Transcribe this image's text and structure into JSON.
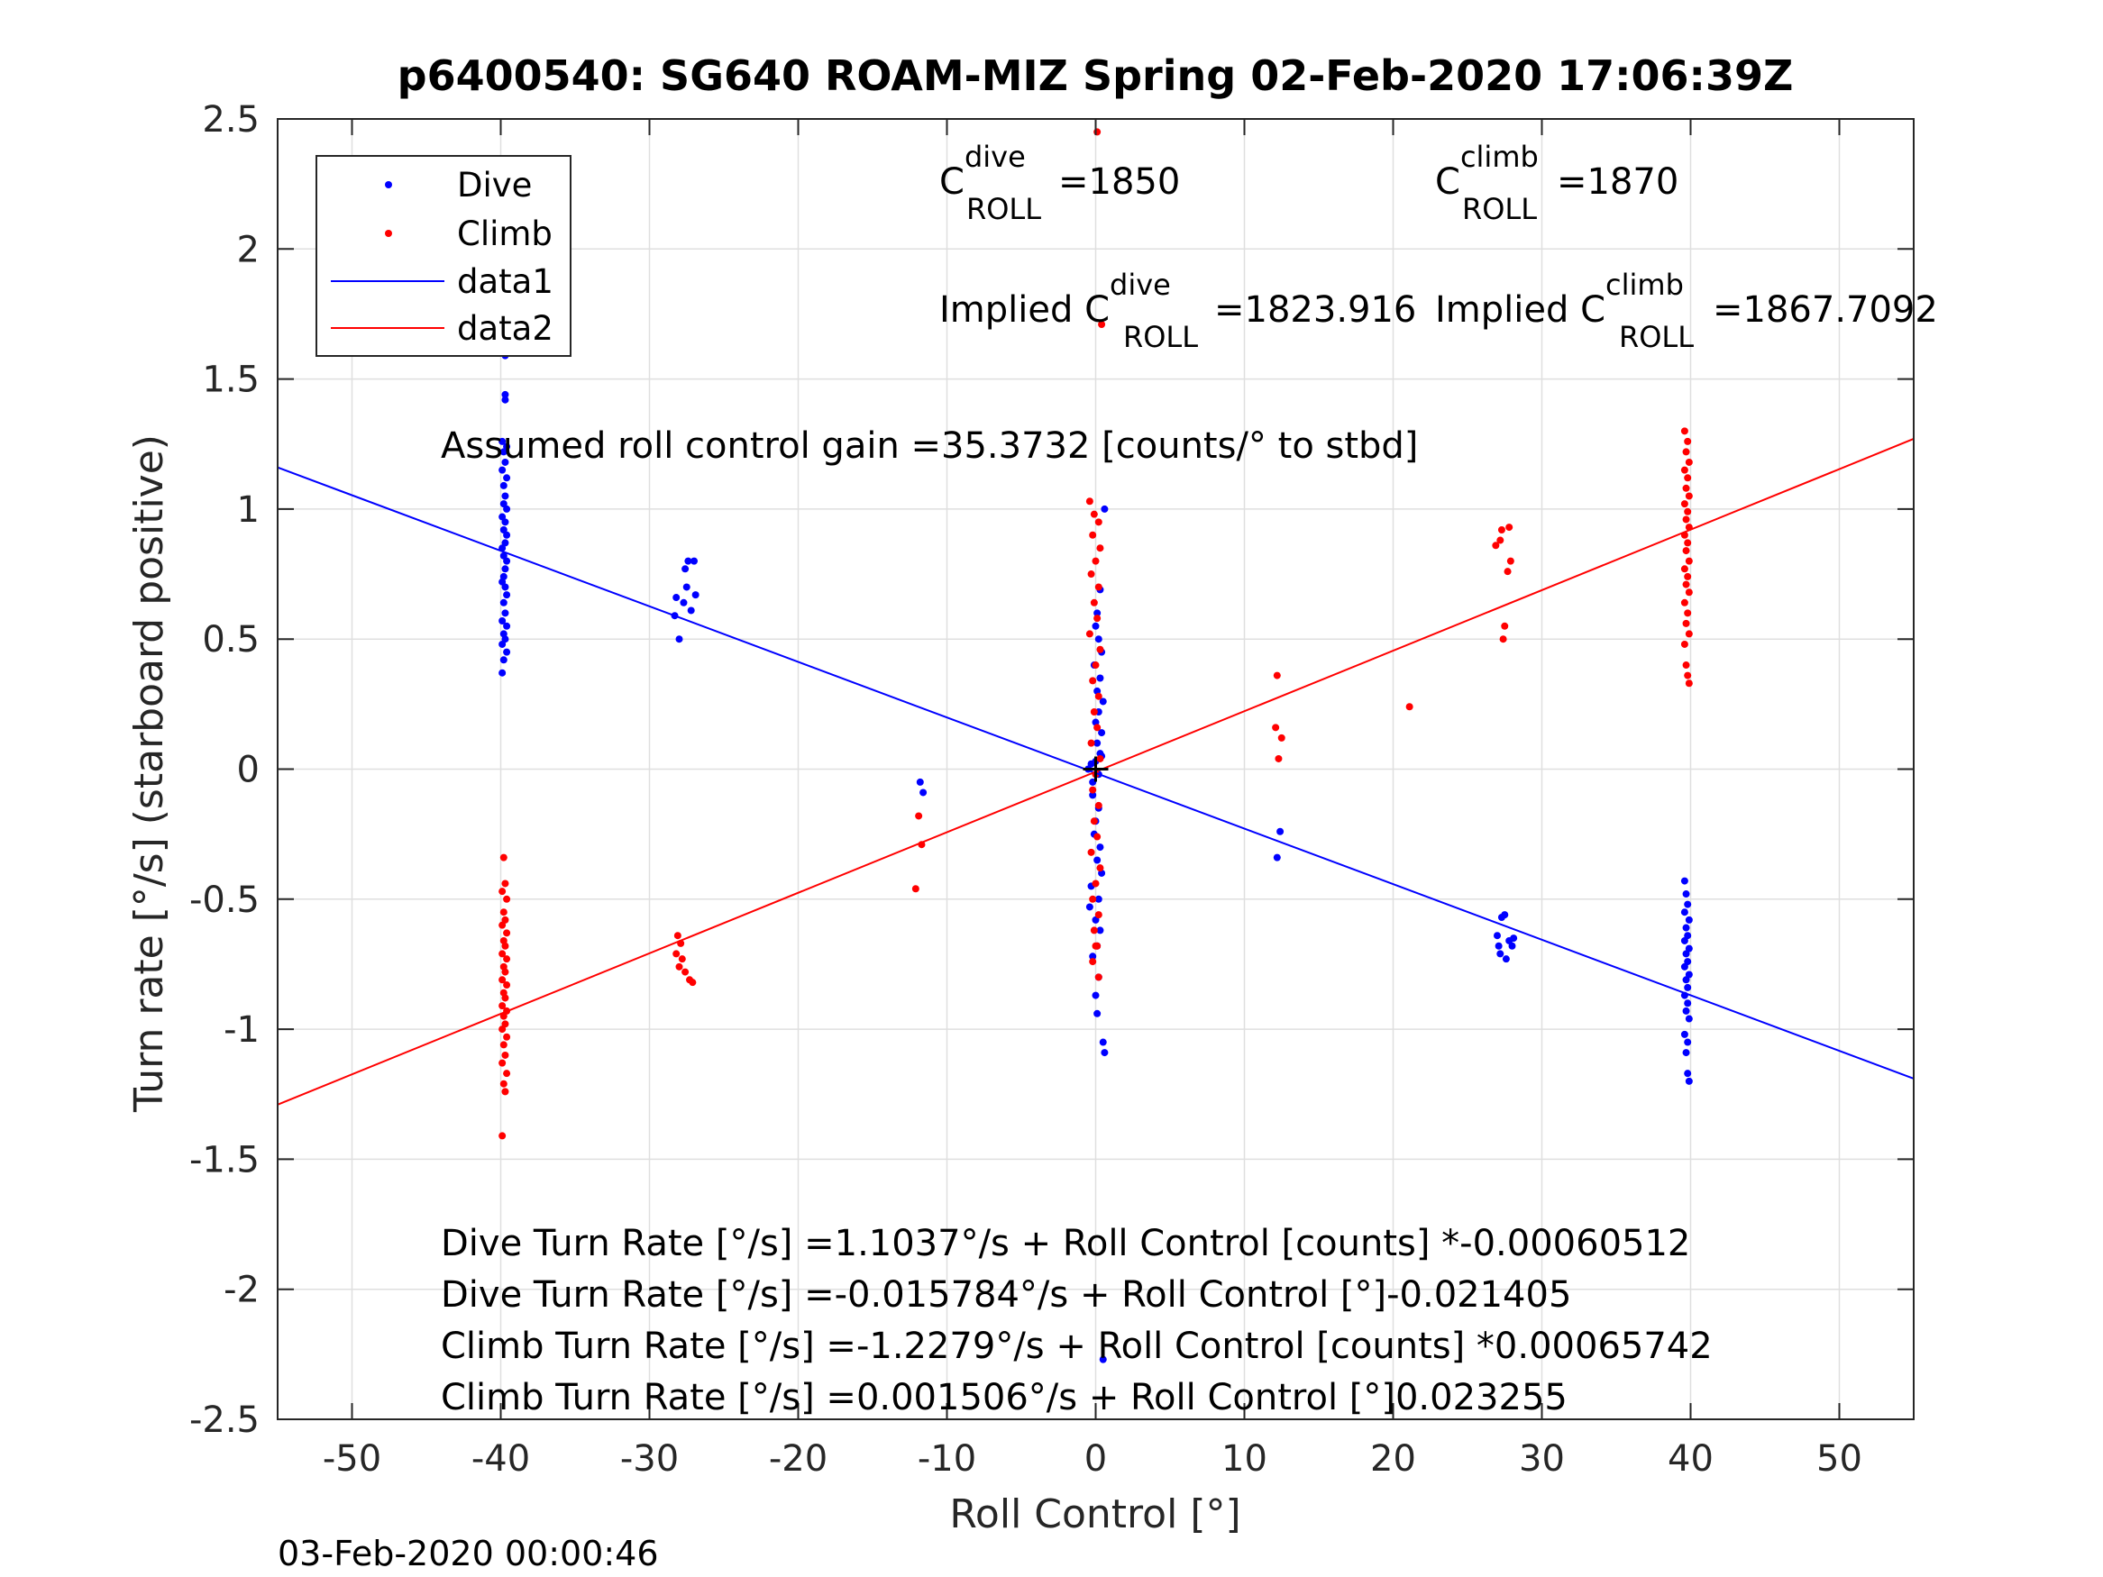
{
  "chart_data": {
    "type": "scatter",
    "title": "p6400540: SG640 ROAM-MIZ Spring 02-Feb-2020 17:06:39Z",
    "xlabel": "Roll Control [°]",
    "ylabel": "Turn rate [°/s] (starboard positive)",
    "xlim": [
      -55,
      55
    ],
    "ylim": [
      -2.5,
      2.5
    ],
    "xticks": [
      -50,
      -40,
      -30,
      -20,
      -10,
      0,
      10,
      20,
      30,
      40,
      50
    ],
    "yticks": [
      -2.5,
      -2,
      -1.5,
      -1,
      -0.5,
      0,
      0.5,
      1,
      1.5,
      2,
      2.5
    ],
    "grid": true,
    "legend_position": "top-left",
    "colors": {
      "dive": "#0000ff",
      "climb": "#ff0000",
      "axis": "#262626",
      "grid": "#dfdfdf"
    },
    "series": [
      {
        "name": "Dive",
        "kind": "points",
        "color": "#0000ff",
        "points": [
          [
            -39.8,
            1.88
          ],
          [
            -39.7,
            1.59
          ],
          [
            -39.7,
            1.44
          ],
          [
            -39.7,
            1.42
          ],
          [
            -39.9,
            1.26
          ],
          [
            -39.6,
            1.24
          ],
          [
            -39.8,
            1.22
          ],
          [
            -39.7,
            1.18
          ],
          [
            -39.9,
            1.15
          ],
          [
            -39.6,
            1.12
          ],
          [
            -39.8,
            1.09
          ],
          [
            -39.7,
            1.05
          ],
          [
            -39.8,
            1.02
          ],
          [
            -39.6,
            1.0
          ],
          [
            -39.9,
            0.97
          ],
          [
            -39.7,
            0.95
          ],
          [
            -39.8,
            0.92
          ],
          [
            -39.6,
            0.9
          ],
          [
            -39.7,
            0.87
          ],
          [
            -39.9,
            0.85
          ],
          [
            -39.8,
            0.82
          ],
          [
            -39.6,
            0.8
          ],
          [
            -39.7,
            0.77
          ],
          [
            -39.8,
            0.74
          ],
          [
            -39.9,
            0.72
          ],
          [
            -39.7,
            0.7
          ],
          [
            -39.6,
            0.67
          ],
          [
            -39.8,
            0.64
          ],
          [
            -39.7,
            0.6
          ],
          [
            -39.9,
            0.57
          ],
          [
            -39.6,
            0.55
          ],
          [
            -39.8,
            0.52
          ],
          [
            -39.7,
            0.5
          ],
          [
            -39.9,
            0.48
          ],
          [
            -39.6,
            0.45
          ],
          [
            -39.8,
            0.42
          ],
          [
            -39.9,
            0.37
          ],
          [
            -28.2,
            0.66
          ],
          [
            -27.7,
            0.64
          ],
          [
            -27.2,
            0.61
          ],
          [
            -28.3,
            0.59
          ],
          [
            -27.4,
            0.8
          ],
          [
            -27.0,
            0.8
          ],
          [
            -27.5,
            0.7
          ],
          [
            -26.9,
            0.67
          ],
          [
            -28.0,
            0.5
          ],
          [
            -27.6,
            0.77
          ],
          [
            -11.8,
            -0.05
          ],
          [
            -11.6,
            -0.09
          ],
          [
            -0.5,
            0.0
          ],
          [
            -0.3,
            0.02
          ],
          [
            -0.2,
            -0.05
          ],
          [
            0.0,
            0.03
          ],
          [
            0.2,
            -0.02
          ],
          [
            0.4,
            0.05
          ],
          [
            0.3,
            0.69
          ],
          [
            0.1,
            0.6
          ],
          [
            0.0,
            0.55
          ],
          [
            0.2,
            0.5
          ],
          [
            0.4,
            0.45
          ],
          [
            -0.1,
            0.4
          ],
          [
            0.3,
            0.35
          ],
          [
            0.1,
            0.3
          ],
          [
            0.5,
            0.26
          ],
          [
            0.2,
            0.22
          ],
          [
            0.0,
            0.18
          ],
          [
            0.4,
            0.14
          ],
          [
            0.1,
            0.1
          ],
          [
            0.3,
            0.06
          ],
          [
            -0.2,
            -0.1
          ],
          [
            0.2,
            -0.15
          ],
          [
            0.0,
            -0.2
          ],
          [
            -0.1,
            -0.25
          ],
          [
            0.3,
            -0.3
          ],
          [
            0.1,
            -0.35
          ],
          [
            0.4,
            -0.4
          ],
          [
            -0.3,
            -0.45
          ],
          [
            0.2,
            -0.5
          ],
          [
            -0.4,
            -0.53
          ],
          [
            0.0,
            -0.58
          ],
          [
            0.3,
            -0.62
          ],
          [
            0.1,
            -0.68
          ],
          [
            -0.2,
            -0.72
          ],
          [
            0.2,
            -0.8
          ],
          [
            0.0,
            -0.87
          ],
          [
            0.1,
            -0.94
          ],
          [
            0.5,
            -1.05
          ],
          [
            0.6,
            -1.09
          ],
          [
            0.6,
            1.0
          ],
          [
            0.5,
            -2.27
          ],
          [
            12.4,
            -0.24
          ],
          [
            12.2,
            -0.34
          ],
          [
            27.0,
            -0.64
          ],
          [
            27.3,
            -0.57
          ],
          [
            27.5,
            -0.56
          ],
          [
            27.1,
            -0.68
          ],
          [
            27.8,
            -0.66
          ],
          [
            28.1,
            -0.65
          ],
          [
            27.6,
            -0.73
          ],
          [
            27.2,
            -0.71
          ],
          [
            28.0,
            -0.68
          ],
          [
            39.6,
            -0.43
          ],
          [
            39.7,
            -0.48
          ],
          [
            39.8,
            -0.52
          ],
          [
            39.6,
            -0.55
          ],
          [
            39.9,
            -0.58
          ],
          [
            39.7,
            -0.61
          ],
          [
            39.8,
            -0.64
          ],
          [
            39.6,
            -0.66
          ],
          [
            39.9,
            -0.69
          ],
          [
            39.7,
            -0.71
          ],
          [
            39.8,
            -0.74
          ],
          [
            39.6,
            -0.76
          ],
          [
            39.9,
            -0.79
          ],
          [
            39.7,
            -0.81
          ],
          [
            39.8,
            -0.84
          ],
          [
            39.6,
            -0.87
          ],
          [
            39.8,
            -0.9
          ],
          [
            39.7,
            -0.93
          ],
          [
            39.9,
            -0.96
          ],
          [
            39.6,
            -1.02
          ],
          [
            39.8,
            -1.05
          ],
          [
            39.7,
            -1.09
          ],
          [
            39.8,
            -1.17
          ],
          [
            39.9,
            -1.2
          ]
        ]
      },
      {
        "name": "Climb",
        "kind": "points",
        "color": "#ff0000",
        "points": [
          [
            -39.8,
            -0.34
          ],
          [
            -39.7,
            -0.44
          ],
          [
            -39.9,
            -0.47
          ],
          [
            -39.6,
            -0.5
          ],
          [
            -39.8,
            -0.55
          ],
          [
            -39.7,
            -0.58
          ],
          [
            -39.9,
            -0.6
          ],
          [
            -39.6,
            -0.63
          ],
          [
            -39.8,
            -0.66
          ],
          [
            -39.7,
            -0.68
          ],
          [
            -39.9,
            -0.71
          ],
          [
            -39.6,
            -0.73
          ],
          [
            -39.8,
            -0.76
          ],
          [
            -39.7,
            -0.78
          ],
          [
            -39.9,
            -0.81
          ],
          [
            -39.6,
            -0.83
          ],
          [
            -39.8,
            -0.86
          ],
          [
            -39.7,
            -0.88
          ],
          [
            -39.9,
            -0.91
          ],
          [
            -39.6,
            -0.93
          ],
          [
            -39.8,
            -0.95
          ],
          [
            -39.7,
            -0.98
          ],
          [
            -39.9,
            -1.0
          ],
          [
            -39.6,
            -1.03
          ],
          [
            -39.8,
            -1.06
          ],
          [
            -39.7,
            -1.1
          ],
          [
            -39.9,
            -1.13
          ],
          [
            -39.6,
            -1.17
          ],
          [
            -39.8,
            -1.21
          ],
          [
            -39.7,
            -1.24
          ],
          [
            -39.9,
            -1.41
          ],
          [
            -28.1,
            -0.64
          ],
          [
            -27.9,
            -0.67
          ],
          [
            -28.2,
            -0.71
          ],
          [
            -27.8,
            -0.73
          ],
          [
            -28.0,
            -0.76
          ],
          [
            -27.6,
            -0.78
          ],
          [
            -27.3,
            -0.81
          ],
          [
            -27.1,
            -0.82
          ],
          [
            -11.9,
            -0.18
          ],
          [
            -11.7,
            -0.29
          ],
          [
            -12.1,
            -0.46
          ],
          [
            -0.4,
            1.03
          ],
          [
            -0.1,
            0.98
          ],
          [
            0.2,
            0.95
          ],
          [
            -0.2,
            0.9
          ],
          [
            0.3,
            0.85
          ],
          [
            0.0,
            0.8
          ],
          [
            -0.3,
            0.75
          ],
          [
            0.2,
            0.7
          ],
          [
            -0.1,
            0.64
          ],
          [
            0.1,
            0.58
          ],
          [
            -0.4,
            0.52
          ],
          [
            0.3,
            0.46
          ],
          [
            0.0,
            0.4
          ],
          [
            -0.2,
            0.34
          ],
          [
            0.2,
            0.28
          ],
          [
            -0.1,
            0.22
          ],
          [
            0.1,
            0.16
          ],
          [
            -0.3,
            0.1
          ],
          [
            0.3,
            0.04
          ],
          [
            0.0,
            -0.02
          ],
          [
            -0.2,
            -0.08
          ],
          [
            0.2,
            -0.14
          ],
          [
            -0.1,
            -0.2
          ],
          [
            0.1,
            -0.26
          ],
          [
            -0.3,
            -0.32
          ],
          [
            0.3,
            -0.38
          ],
          [
            0.0,
            -0.44
          ],
          [
            -0.2,
            -0.5
          ],
          [
            0.2,
            -0.56
          ],
          [
            -0.1,
            -0.62
          ],
          [
            0.1,
            -0.68
          ],
          [
            -0.2,
            -0.74
          ],
          [
            0.2,
            -0.8
          ],
          [
            0.0,
            -0.68
          ],
          [
            0.1,
            2.45
          ],
          [
            0.4,
            1.71
          ],
          [
            12.2,
            0.36
          ],
          [
            12.1,
            0.16
          ],
          [
            12.5,
            0.12
          ],
          [
            12.3,
            0.04
          ],
          [
            21.1,
            0.24
          ],
          [
            26.9,
            0.86
          ],
          [
            27.3,
            0.92
          ],
          [
            27.8,
            0.93
          ],
          [
            27.2,
            0.88
          ],
          [
            27.9,
            0.8
          ],
          [
            27.7,
            0.76
          ],
          [
            27.5,
            0.55
          ],
          [
            27.4,
            0.5
          ],
          [
            39.6,
            1.3
          ],
          [
            39.8,
            1.26
          ],
          [
            39.7,
            1.22
          ],
          [
            39.9,
            1.18
          ],
          [
            39.6,
            1.15
          ],
          [
            39.8,
            1.12
          ],
          [
            39.7,
            1.08
          ],
          [
            39.9,
            1.05
          ],
          [
            39.6,
            1.02
          ],
          [
            39.8,
            0.99
          ],
          [
            39.7,
            0.96
          ],
          [
            39.9,
            0.93
          ],
          [
            39.6,
            0.9
          ],
          [
            39.8,
            0.87
          ],
          [
            39.7,
            0.84
          ],
          [
            39.9,
            0.8
          ],
          [
            39.6,
            0.77
          ],
          [
            39.8,
            0.74
          ],
          [
            39.7,
            0.71
          ],
          [
            39.9,
            0.68
          ],
          [
            39.6,
            0.64
          ],
          [
            39.8,
            0.6
          ],
          [
            39.7,
            0.56
          ],
          [
            39.9,
            0.52
          ],
          [
            39.6,
            0.48
          ],
          [
            39.7,
            0.4
          ],
          [
            39.8,
            0.36
          ],
          [
            39.9,
            0.33
          ]
        ]
      },
      {
        "name": "data1",
        "kind": "line",
        "color": "#0000ff",
        "x": [
          -55,
          55
        ],
        "y": [
          1.16,
          -1.19
        ]
      },
      {
        "name": "data2",
        "kind": "line",
        "color": "#ff0000",
        "x": [
          -55,
          55
        ],
        "y": [
          -1.29,
          1.27
        ]
      }
    ],
    "annotations": {
      "c_dive_base": "C",
      "c_dive_sup": "dive",
      "c_dive_sub": "ROLL",
      "c_dive_val": "=1850",
      "c_climb_base": "C",
      "c_climb_sup": "climb",
      "c_climb_sub": "ROLL",
      "c_climb_val": "=1870",
      "implied_dive_prefix": "Implied C",
      "implied_dive_sup": "dive",
      "implied_dive_sub": "ROLL",
      "implied_dive_val": "=1823.916",
      "implied_climb_prefix": "Implied C",
      "implied_climb_sup": "climb",
      "implied_climb_sub": "ROLL",
      "implied_climb_val": "=1867.7092",
      "gain": "Assumed roll control gain =35.3732 [counts/° to stbd]",
      "fit_lines": [
        "Dive Turn Rate [°/s] =1.1037°/s + Roll Control [counts] *-0.00060512",
        "Dive Turn Rate [°/s] =-0.015784°/s + Roll Control [°]-0.021405",
        "Climb Turn Rate [°/s] =-1.2279°/s + Roll Control [counts] *0.00065742",
        "Climb Turn Rate [°/s] =0.001506°/s + Roll Control [°]0.023255"
      ]
    }
  },
  "footer_timestamp": "03-Feb-2020 00:00:46"
}
